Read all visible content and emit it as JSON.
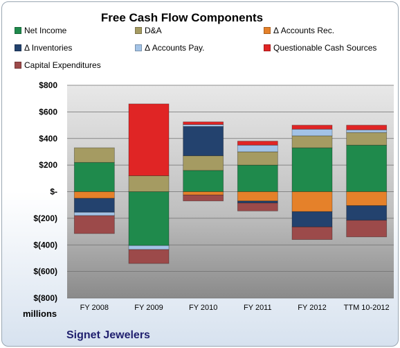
{
  "chart_data": {
    "type": "bar",
    "stacked": true,
    "title": "Free Cash Flow Components",
    "unit_label": "millions",
    "categories": [
      "FY 2008",
      "FY 2009",
      "FY 2010",
      "FY 2011",
      "FY 2012",
      "TTM 10-2012"
    ],
    "ylim": [
      -800,
      800
    ],
    "yticks": [
      800,
      600,
      400,
      200,
      0,
      -200,
      -400,
      -600,
      -800
    ],
    "ytick_labels": [
      "$800",
      "$600",
      "$400",
      "$200",
      "$-",
      "$(200)",
      "$(400)",
      "$(600)",
      "$(800)"
    ],
    "grid": true,
    "legend_position": "top",
    "series": [
      {
        "name": "Net Income",
        "color": "#1f8a4c",
        "values": [
          220,
          -405,
          160,
          200,
          330,
          350
        ]
      },
      {
        "name": "D&A",
        "color": "#a59b62",
        "values": [
          110,
          120,
          110,
          100,
          90,
          95
        ]
      },
      {
        "name": "Δ Accounts Rec.",
        "color": "#e5812a",
        "values": [
          -50,
          0,
          -25,
          -70,
          -150,
          -105
        ]
      },
      {
        "name": "Δ Inventories",
        "color": "#23426e",
        "values": [
          -105,
          0,
          220,
          -15,
          -115,
          -110
        ]
      },
      {
        "name": "Δ Accounts Pay.",
        "color": "#a3c3e6",
        "values": [
          -25,
          -30,
          15,
          50,
          50,
          20
        ]
      },
      {
        "name": "Questionable Cash Sources",
        "color": "#e02525",
        "values": [
          0,
          540,
          20,
          30,
          30,
          35
        ]
      },
      {
        "name": "Capital Expenditures",
        "color": "#9c4a4a",
        "values": [
          -135,
          -105,
          -45,
          -60,
          -95,
          -125
        ]
      }
    ]
  },
  "footer": {
    "company": "Signet Jewelers"
  }
}
